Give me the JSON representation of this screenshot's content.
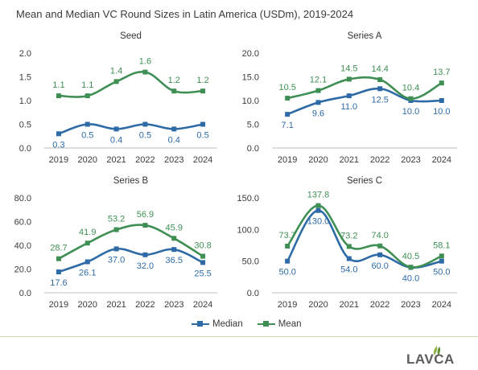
{
  "title": "Mean and Median VC Round Sizes in Latin America (USDm), 2019-2024",
  "colors": {
    "median": "#2e6ba6",
    "mean": "#3f8f55",
    "axis": "#bfbfbf"
  },
  "legend": {
    "median_label": "Median",
    "mean_label": "Mean"
  },
  "logo": {
    "text": "LAVCA"
  },
  "chart_data": [
    {
      "type": "line",
      "title": "Seed",
      "x": [
        "2019",
        "2020",
        "2021",
        "2022",
        "2023",
        "2024"
      ],
      "yticks": [
        "0.0",
        "0.5",
        "1.0",
        "1.5",
        "2.0"
      ],
      "ylim": [
        0,
        2.0
      ],
      "series": [
        {
          "name": "Median",
          "values": [
            0.3,
            0.5,
            0.4,
            0.5,
            0.4,
            0.5
          ],
          "labels": [
            "0.3",
            "0.5",
            "0.4",
            "0.5",
            "0.4",
            "0.5"
          ]
        },
        {
          "name": "Mean",
          "values": [
            1.1,
            1.1,
            1.4,
            1.6,
            1.2,
            1.2
          ],
          "labels": [
            "1.1",
            "1.1",
            "1.4",
            "1.6",
            "1.2",
            "1.2"
          ]
        }
      ]
    },
    {
      "type": "line",
      "title": "Series A",
      "x": [
        "2019",
        "2020",
        "2021",
        "2022",
        "2023",
        "2024"
      ],
      "yticks": [
        "0.0",
        "5.0",
        "10.0",
        "15.0",
        "20.0"
      ],
      "ylim": [
        0,
        20.0
      ],
      "series": [
        {
          "name": "Median",
          "values": [
            7.1,
            9.6,
            11.0,
            12.5,
            10.0,
            10.0
          ],
          "labels": [
            "7.1",
            "9.6",
            "11.0",
            "12.5",
            "10.0",
            "10.0"
          ]
        },
        {
          "name": "Mean",
          "values": [
            10.5,
            12.1,
            14.5,
            14.4,
            10.4,
            13.7
          ],
          "labels": [
            "10.5",
            "12.1",
            "14.5",
            "14.4",
            "10.4",
            "13.7"
          ]
        }
      ]
    },
    {
      "type": "line",
      "title": "Series B",
      "x": [
        "2019",
        "2020",
        "2021",
        "2022",
        "2023",
        "2024"
      ],
      "yticks": [
        "0.0",
        "20.0",
        "40.0",
        "60.0",
        "80.0"
      ],
      "ylim": [
        0,
        80.0
      ],
      "series": [
        {
          "name": "Median",
          "values": [
            17.6,
            26.1,
            37.0,
            32.0,
            36.5,
            25.5
          ],
          "labels": [
            "17.6",
            "26.1",
            "37.0",
            "32.0",
            "36.5",
            "25.5"
          ]
        },
        {
          "name": "Mean",
          "values": [
            28.7,
            41.9,
            53.2,
            56.9,
            45.9,
            30.8
          ],
          "labels": [
            "28.7",
            "41.9",
            "53.2",
            "56.9",
            "45.9",
            "30.8"
          ]
        }
      ]
    },
    {
      "type": "line",
      "title": "Series C",
      "x": [
        "2019",
        "2020",
        "2021",
        "2022",
        "2023",
        "2024"
      ],
      "yticks": [
        "0.0",
        "50.0",
        "100.0",
        "150.0"
      ],
      "ylim": [
        0,
        150.0
      ],
      "series": [
        {
          "name": "Median",
          "values": [
            50.0,
            130.0,
            54.0,
            60.0,
            40.0,
            50.0
          ],
          "labels": [
            "50.0",
            "130.0",
            "54.0",
            "60.0",
            "40.0",
            "50.0"
          ]
        },
        {
          "name": "Mean",
          "values": [
            73.7,
            137.8,
            73.2,
            74.0,
            40.5,
            58.1
          ],
          "labels": [
            "73.7",
            "137.8",
            "73.2",
            "74.0",
            "40.5",
            "58.1"
          ]
        }
      ]
    }
  ]
}
